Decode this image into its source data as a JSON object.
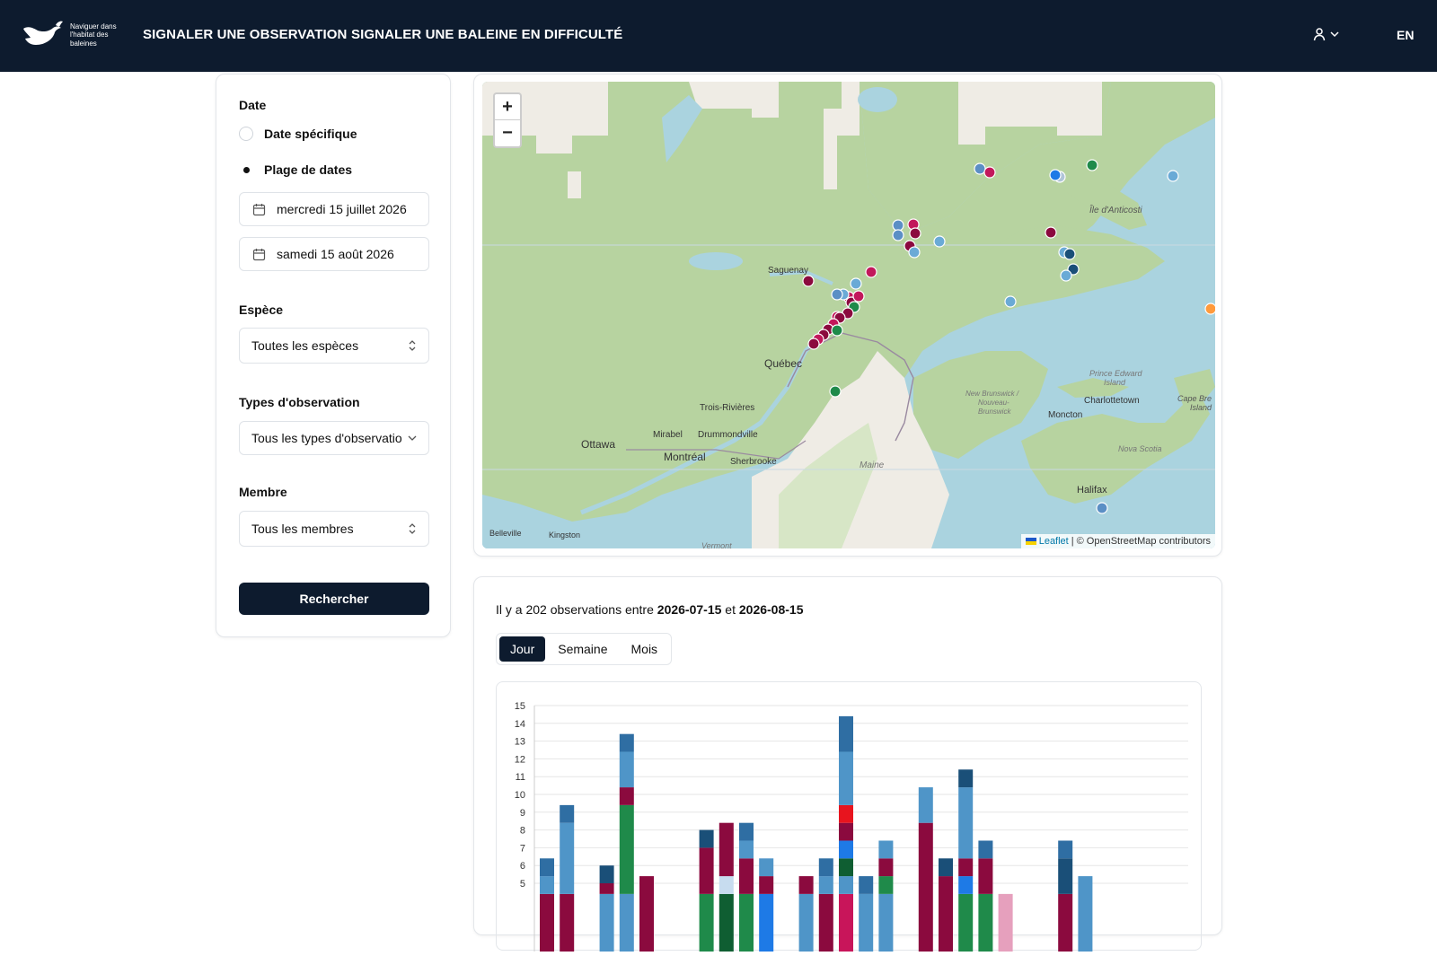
{
  "header": {
    "logo_icon": "whale-tail-icon",
    "logo_text": "Naviguer dans l'habitat des baleines",
    "nav": [
      "SIGNALER UNE OBSERVATION",
      "SIGNALER UNE BALEINE EN DIFFICULTÉ"
    ],
    "user_icon": "user-icon",
    "lang": "EN"
  },
  "filters": {
    "date_label": "Date",
    "date_options": [
      {
        "label": "Date spécifique",
        "checked": false
      },
      {
        "label": "Plage de dates",
        "checked": true
      }
    ],
    "start_date": "mercredi 15 juillet 2026",
    "end_date": "samedi 15 août 2026",
    "species_label": "Espèce",
    "species_value": "Toutes les espèces",
    "obs_types_label": "Types d'observation",
    "obs_types_value": "Tous les types d'observation",
    "member_label": "Membre",
    "member_value": "Tous les membres",
    "search_button": "Rechercher"
  },
  "map": {
    "zoom_in": "+",
    "zoom_out": "−",
    "attribution_link": "Leaflet",
    "attribution_text": "| © OpenStreetMap contributors",
    "labels": [
      {
        "text": "Île d'Anticosti",
        "style": "water"
      },
      {
        "text": "Saguenay",
        "style": "place"
      },
      {
        "text": "Québec",
        "style": "city"
      },
      {
        "text": "Trois-Rivières",
        "style": "place"
      },
      {
        "text": "Ottawa",
        "style": "city"
      },
      {
        "text": "Mirabel",
        "style": "place"
      },
      {
        "text": "Drummondville",
        "style": "place"
      },
      {
        "text": "Montréal",
        "style": "city"
      },
      {
        "text": "Sherbrooke",
        "style": "place"
      },
      {
        "text": "Maine",
        "style": "region"
      },
      {
        "text": "Prince Edward",
        "style": "region"
      },
      {
        "text": "Island",
        "style": "region"
      },
      {
        "text": "Charlottetown",
        "style": "place"
      },
      {
        "text": "Cape Bre",
        "style": "region"
      },
      {
        "text": "Island",
        "style": "region"
      },
      {
        "text": "New Brunswick /",
        "style": "region"
      },
      {
        "text": "Nouveau-",
        "style": "region"
      },
      {
        "text": "Brunswick",
        "style": "region"
      },
      {
        "text": "Moncton",
        "style": "place"
      },
      {
        "text": "Nova Scotia",
        "style": "region"
      },
      {
        "text": "Halifax",
        "style": "city"
      },
      {
        "text": "Belleville",
        "style": "place"
      },
      {
        "text": "Kingston",
        "style": "place"
      },
      {
        "text": "Vermont",
        "style": "region"
      }
    ]
  },
  "stats": {
    "summary_prefix": "Il y a 202 observations entre",
    "start": "2026-07-15",
    "middle": "et",
    "end": "2026-08-15",
    "tabs": [
      {
        "label": "Jour",
        "active": true
      },
      {
        "label": "Semaine",
        "active": false
      },
      {
        "label": "Mois",
        "active": false
      }
    ]
  },
  "chart_data": {
    "type": "bar",
    "stacked": true,
    "y_ticks": [
      5,
      6,
      7,
      8,
      9,
      10,
      11,
      12,
      13,
      14,
      15
    ],
    "ylim": [
      0,
      15
    ],
    "grid": true,
    "colors": {
      "maroon": "#8b0a3e",
      "mid_blue": "#4f95c8",
      "dark_blue": "#1a4f78",
      "steel": "#2f6ea3",
      "green": "#1f8a4a",
      "dark_green": "#0f5e32",
      "light_blue": "#c7dcef",
      "bright_blue": "#1e7ae6",
      "red": "#e8141e",
      "pink": "#e6a0bd",
      "crimson": "#c8155a"
    },
    "bars": [
      {
        "x": 0,
        "segments": [
          {
            "c": "maroon",
            "v": 4.4
          },
          {
            "c": "mid_blue",
            "v": 1.0
          },
          {
            "c": "steel",
            "v": 1.0
          }
        ]
      },
      {
        "x": 1,
        "segments": [
          {
            "c": "maroon",
            "v": 4.4
          },
          {
            "c": "mid_blue",
            "v": 4.0
          },
          {
            "c": "steel",
            "v": 1.0
          }
        ]
      },
      {
        "x": 3,
        "segments": [
          {
            "c": "mid_blue",
            "v": 4.4
          },
          {
            "c": "maroon",
            "v": 0.6
          },
          {
            "c": "dark_blue",
            "v": 1.0
          }
        ]
      },
      {
        "x": 4,
        "segments": [
          {
            "c": "mid_blue",
            "v": 4.4
          },
          {
            "c": "green",
            "v": 5.0
          },
          {
            "c": "maroon",
            "v": 1.0
          },
          {
            "c": "mid_blue",
            "v": 2.0
          },
          {
            "c": "steel",
            "v": 1.0
          }
        ]
      },
      {
        "x": 5,
        "segments": [
          {
            "c": "maroon",
            "v": 5.4
          }
        ]
      },
      {
        "x": 8,
        "segments": [
          {
            "c": "green",
            "v": 4.4
          },
          {
            "c": "maroon",
            "v": 2.6
          },
          {
            "c": "dark_blue",
            "v": 1.0
          }
        ]
      },
      {
        "x": 9,
        "segments": [
          {
            "c": "dark_green",
            "v": 4.4
          },
          {
            "c": "light_blue",
            "v": 1.0
          },
          {
            "c": "maroon",
            "v": 3.0
          }
        ]
      },
      {
        "x": 10,
        "segments": [
          {
            "c": "green",
            "v": 4.4
          },
          {
            "c": "maroon",
            "v": 2.0
          },
          {
            "c": "mid_blue",
            "v": 1.0
          },
          {
            "c": "steel",
            "v": 1.0
          }
        ]
      },
      {
        "x": 11,
        "segments": [
          {
            "c": "bright_blue",
            "v": 4.4
          },
          {
            "c": "maroon",
            "v": 1.0
          },
          {
            "c": "mid_blue",
            "v": 1.0
          }
        ]
      },
      {
        "x": 13,
        "segments": [
          {
            "c": "mid_blue",
            "v": 4.4
          },
          {
            "c": "maroon",
            "v": 1.0
          }
        ]
      },
      {
        "x": 14,
        "segments": [
          {
            "c": "maroon",
            "v": 4.4
          },
          {
            "c": "mid_blue",
            "v": 1.0
          },
          {
            "c": "steel",
            "v": 1.0
          }
        ]
      },
      {
        "x": 15,
        "segments": [
          {
            "c": "crimson",
            "v": 4.4
          },
          {
            "c": "mid_blue",
            "v": 1.0
          },
          {
            "c": "dark_green",
            "v": 1.0
          },
          {
            "c": "bright_blue",
            "v": 1.0
          },
          {
            "c": "maroon",
            "v": 1.0
          },
          {
            "c": "red",
            "v": 1.0
          },
          {
            "c": "mid_blue",
            "v": 3.0
          },
          {
            "c": "steel",
            "v": 2.0
          }
        ]
      },
      {
        "x": 16,
        "segments": [
          {
            "c": "mid_blue",
            "v": 4.4
          },
          {
            "c": "steel",
            "v": 1.0
          }
        ]
      },
      {
        "x": 17,
        "segments": [
          {
            "c": "mid_blue",
            "v": 4.4
          },
          {
            "c": "green",
            "v": 1.0
          },
          {
            "c": "maroon",
            "v": 1.0
          },
          {
            "c": "mid_blue",
            "v": 1.0
          }
        ]
      },
      {
        "x": 19,
        "segments": [
          {
            "c": "maroon",
            "v": 8.4
          },
          {
            "c": "mid_blue",
            "v": 2.0
          }
        ]
      },
      {
        "x": 20,
        "segments": [
          {
            "c": "maroon",
            "v": 5.4
          },
          {
            "c": "dark_blue",
            "v": 1.0
          }
        ]
      },
      {
        "x": 21,
        "segments": [
          {
            "c": "green",
            "v": 4.4
          },
          {
            "c": "bright_blue",
            "v": 1.0
          },
          {
            "c": "maroon",
            "v": 1.0
          },
          {
            "c": "mid_blue",
            "v": 4.0
          },
          {
            "c": "dark_blue",
            "v": 1.0
          }
        ]
      },
      {
        "x": 22,
        "segments": [
          {
            "c": "green",
            "v": 4.4
          },
          {
            "c": "maroon",
            "v": 2.0
          },
          {
            "c": "steel",
            "v": 1.0
          }
        ]
      },
      {
        "x": 23,
        "segments": [
          {
            "c": "pink",
            "v": 4.4
          }
        ]
      },
      {
        "x": 26,
        "segments": [
          {
            "c": "maroon",
            "v": 4.4
          },
          {
            "c": "dark_blue",
            "v": 2.0
          },
          {
            "c": "steel",
            "v": 1.0
          }
        ]
      },
      {
        "x": 27,
        "segments": [
          {
            "c": "mid_blue",
            "v": 5.4
          }
        ]
      }
    ]
  }
}
